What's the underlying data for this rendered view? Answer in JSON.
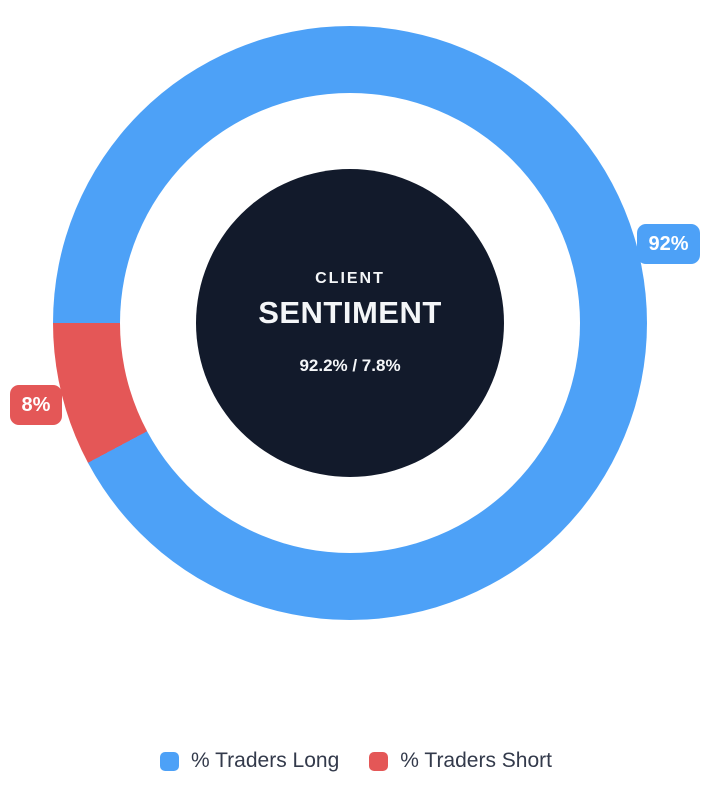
{
  "colors": {
    "long": "#4da1f7",
    "short": "#e45757",
    "center_bg": "#121a2b",
    "center_text": "#f4f6f8",
    "legend_text": "#333a4b",
    "background": "#ffffff"
  },
  "chart_data": {
    "type": "pie",
    "subtype": "donut",
    "title": "CLIENT SENTIMENT",
    "series": [
      {
        "name": "% Traders Long",
        "value": 92.2,
        "badge_label": "92%",
        "color": "#4da1f7"
      },
      {
        "name": "% Traders Short",
        "value": 7.8,
        "badge_label": "8%",
        "color": "#e45757"
      }
    ],
    "center_label": {
      "line1": "CLIENT",
      "line2": "SENTIMENT",
      "line3": "92.2% / 7.8%"
    },
    "start_angle_deg": 270,
    "direction": "clockwise",
    "legend_position": "bottom"
  },
  "legend": {
    "items": [
      {
        "label": "% Traders Long",
        "color": "#4da1f7"
      },
      {
        "label": "% Traders Short",
        "color": "#e45757"
      }
    ]
  }
}
